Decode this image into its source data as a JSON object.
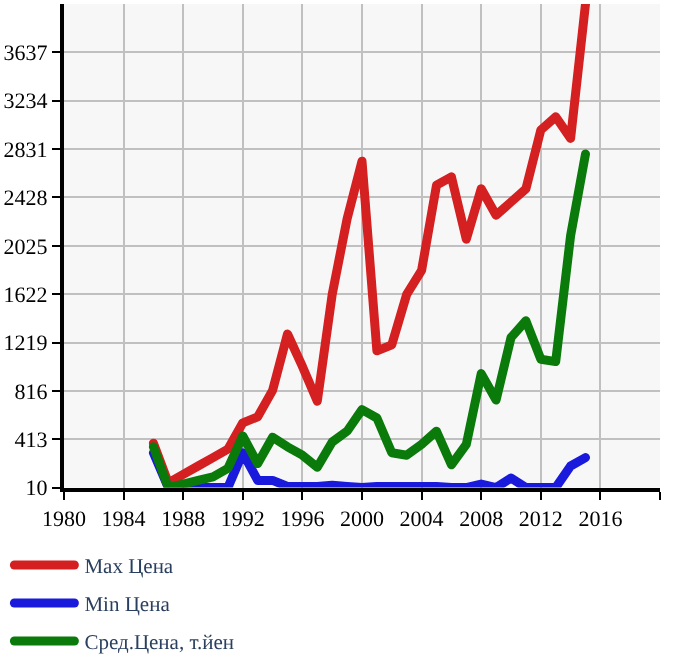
{
  "chart_data": {
    "type": "line",
    "x": [
      1986,
      1987,
      1988,
      1989,
      1990,
      1991,
      1992,
      1993,
      1994,
      1995,
      1996,
      1997,
      1998,
      1999,
      2000,
      2001,
      2002,
      2003,
      2004,
      2005,
      2006,
      2007,
      2008,
      2009,
      2010,
      2011,
      2012,
      2013,
      2014,
      2015
    ],
    "series": [
      {
        "name": "Max Цена",
        "color": "#d42020",
        "values": [
          380,
          50,
          120,
          190,
          260,
          330,
          550,
          600,
          820,
          1290,
          1020,
          730,
          1620,
          2250,
          2730,
          1150,
          1200,
          1620,
          1820,
          2530,
          2600,
          2080,
          2500,
          2280,
          2390,
          2500,
          2990,
          3100,
          2920,
          4040
        ]
      },
      {
        "name": "Min Цена",
        "color": "#1a1adc",
        "values": [
          300,
          10,
          10,
          10,
          10,
          10,
          300,
          70,
          70,
          20,
          20,
          20,
          30,
          20,
          10,
          20,
          20,
          20,
          20,
          20,
          10,
          10,
          40,
          10,
          90,
          10,
          10,
          10,
          190,
          260
        ]
      },
      {
        "name": "Сред.Цена, т.йен",
        "color": "#0a7a0a",
        "values": [
          350,
          10,
          40,
          70,
          100,
          170,
          440,
          210,
          430,
          350,
          280,
          180,
          390,
          480,
          660,
          590,
          300,
          280,
          370,
          480,
          200,
          370,
          960,
          740,
          1260,
          1400,
          1080,
          1060,
          2110,
          2790
        ]
      }
    ],
    "xlim": [
      1980,
      2020
    ],
    "xticks": [
      1980,
      1984,
      1988,
      1992,
      1996,
      2000,
      2004,
      2008,
      2012,
      2016,
      {
        "value": 2020,
        "label": null
      }
    ],
    "ylim": [
      10,
      4040
    ],
    "yticks": [
      10,
      413,
      816,
      1219,
      1622,
      2025,
      2428,
      2831,
      3234,
      3637
    ],
    "grid": true,
    "legend": "bottom",
    "marker": "none",
    "line_style": "solid"
  }
}
